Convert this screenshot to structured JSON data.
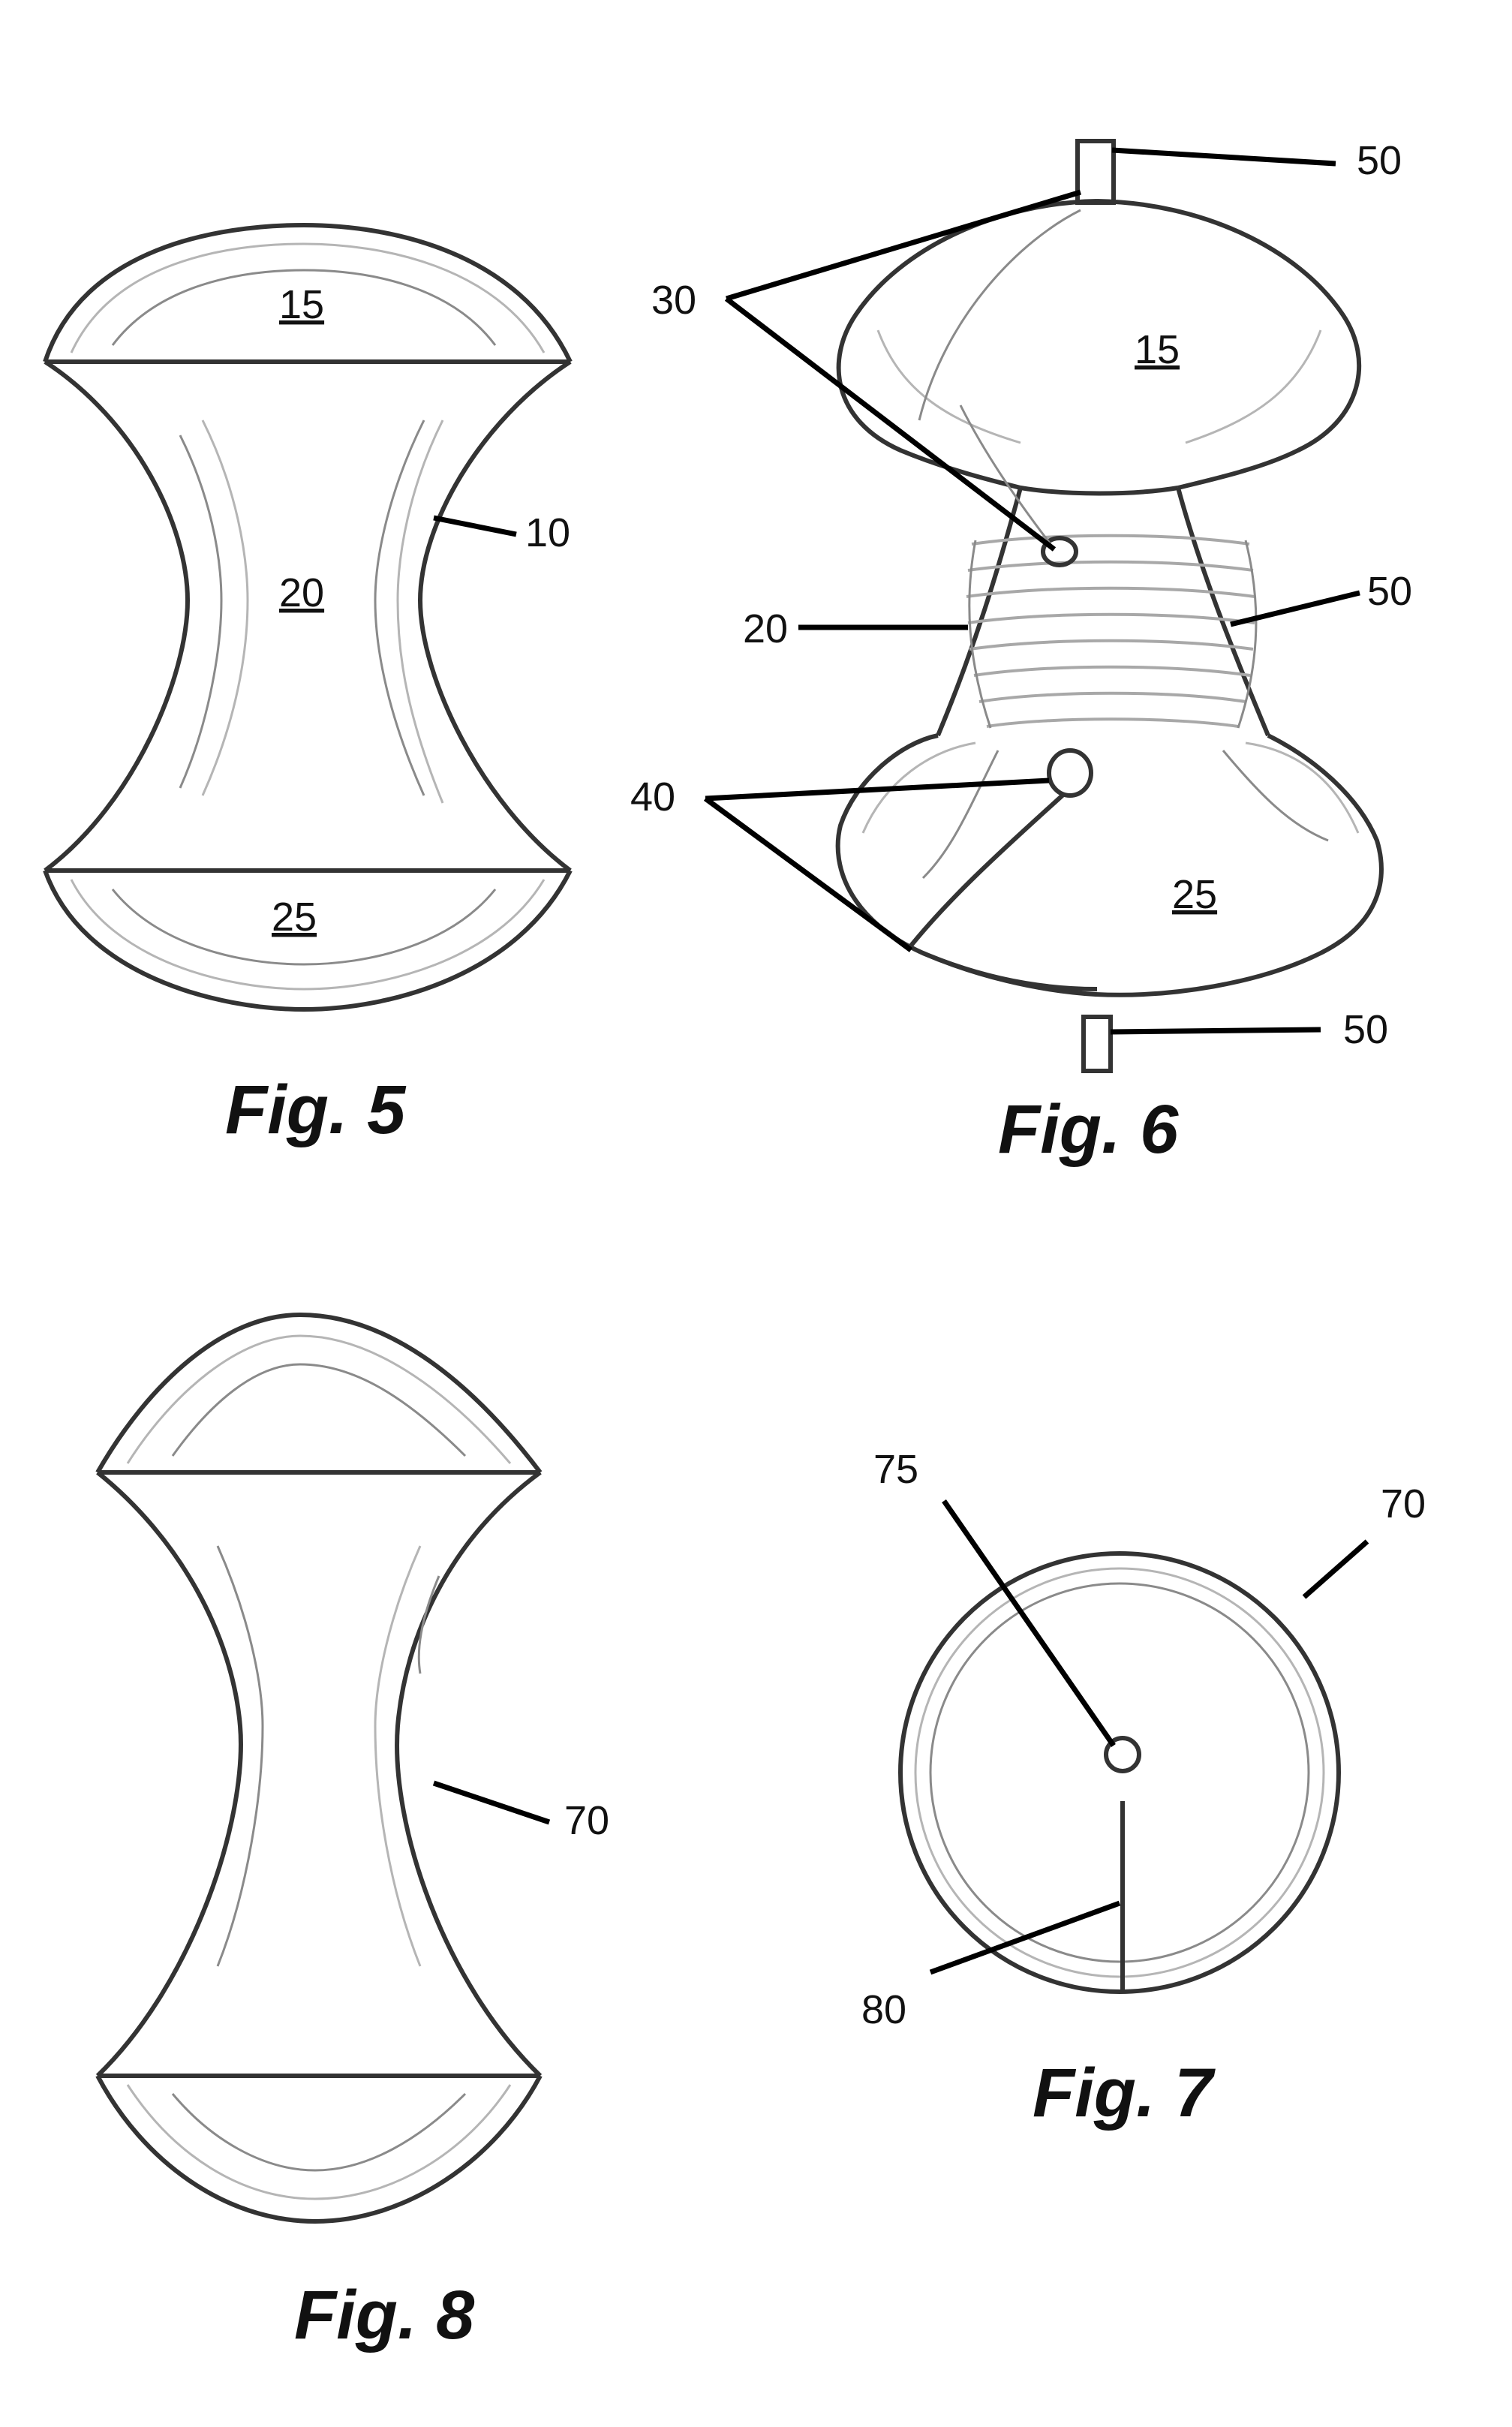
{
  "figures": {
    "fig5": {
      "caption": "Fig. 5",
      "labels": {
        "top": "15",
        "middle": "20",
        "bottom": "25",
        "body": "10"
      }
    },
    "fig6": {
      "caption": "Fig. 6",
      "labels": {
        "pin_top": "50",
        "channels_top": "30",
        "top": "15",
        "winding": "50",
        "middle": "20",
        "channels_bottom": "40",
        "bottom": "25",
        "pin_bottom": "50"
      }
    },
    "fig7": {
      "caption": "Fig. 7",
      "labels": {
        "hole": "75",
        "body": "70",
        "slit": "80"
      }
    },
    "fig8": {
      "caption": "Fig. 8",
      "labels": {
        "body": "70"
      }
    }
  }
}
